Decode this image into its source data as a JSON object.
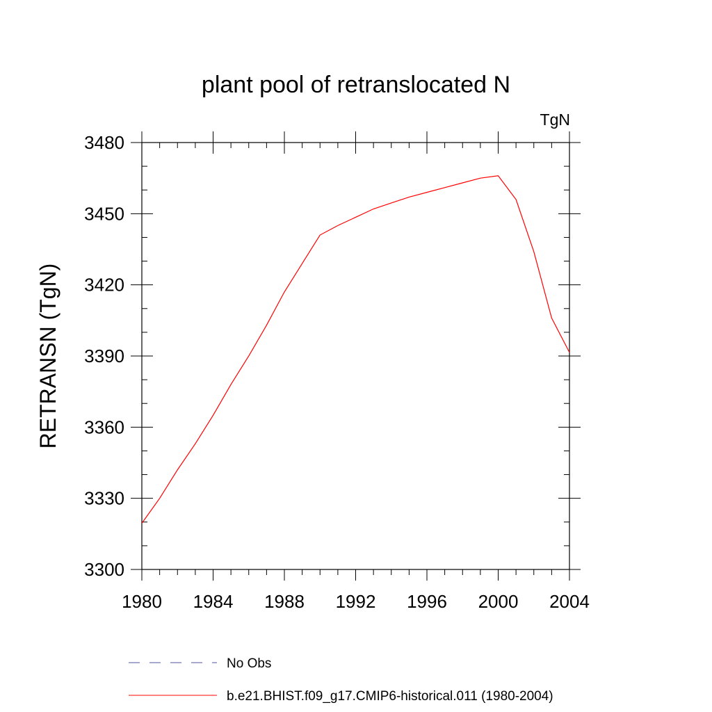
{
  "chart_data": {
    "type": "line",
    "title": "plant pool of retranslocated N",
    "units_label": "TgN",
    "xlabel": "",
    "ylabel": "RETRANSN  (TgN)",
    "xlim": [
      1980,
      2004
    ],
    "ylim": [
      3300,
      3480
    ],
    "xticks": [
      1980,
      1984,
      1988,
      1992,
      1996,
      2000,
      2004
    ],
    "yticks": [
      3300,
      3330,
      3360,
      3390,
      3420,
      3450,
      3480
    ],
    "x_minor_step": 1,
    "y_minor_step": 10,
    "grid": false,
    "legend_position": "bottom",
    "series": [
      {
        "name": "b.e21.BHIST.f09_g17.CMIP6-historical.011 (1980-2004)",
        "color": "#ff0000",
        "style": "solid",
        "x": [
          1980,
          1981,
          1982,
          1983,
          1984,
          1985,
          1986,
          1987,
          1988,
          1989,
          1990,
          1991,
          1992,
          1993,
          1994,
          1995,
          1996,
          1997,
          1998,
          1999,
          2000,
          2001,
          2002,
          2003,
          2004
        ],
        "values": [
          3319.5,
          3330,
          3342,
          3353,
          3365,
          3378,
          3390,
          3403,
          3417,
          3429,
          3441,
          3445,
          3448.5,
          3452,
          3454.5,
          3457,
          3459,
          3461,
          3463,
          3465,
          3466,
          3456,
          3434,
          3406,
          3391.5
        ]
      }
    ],
    "legend": [
      {
        "label": "No Obs",
        "color": "#5050a0",
        "style": "dashed"
      },
      {
        "label": "b.e21.BHIST.f09_g17.CMIP6-historical.011 (1980-2004)",
        "color": "#ff0000",
        "style": "solid"
      }
    ]
  }
}
